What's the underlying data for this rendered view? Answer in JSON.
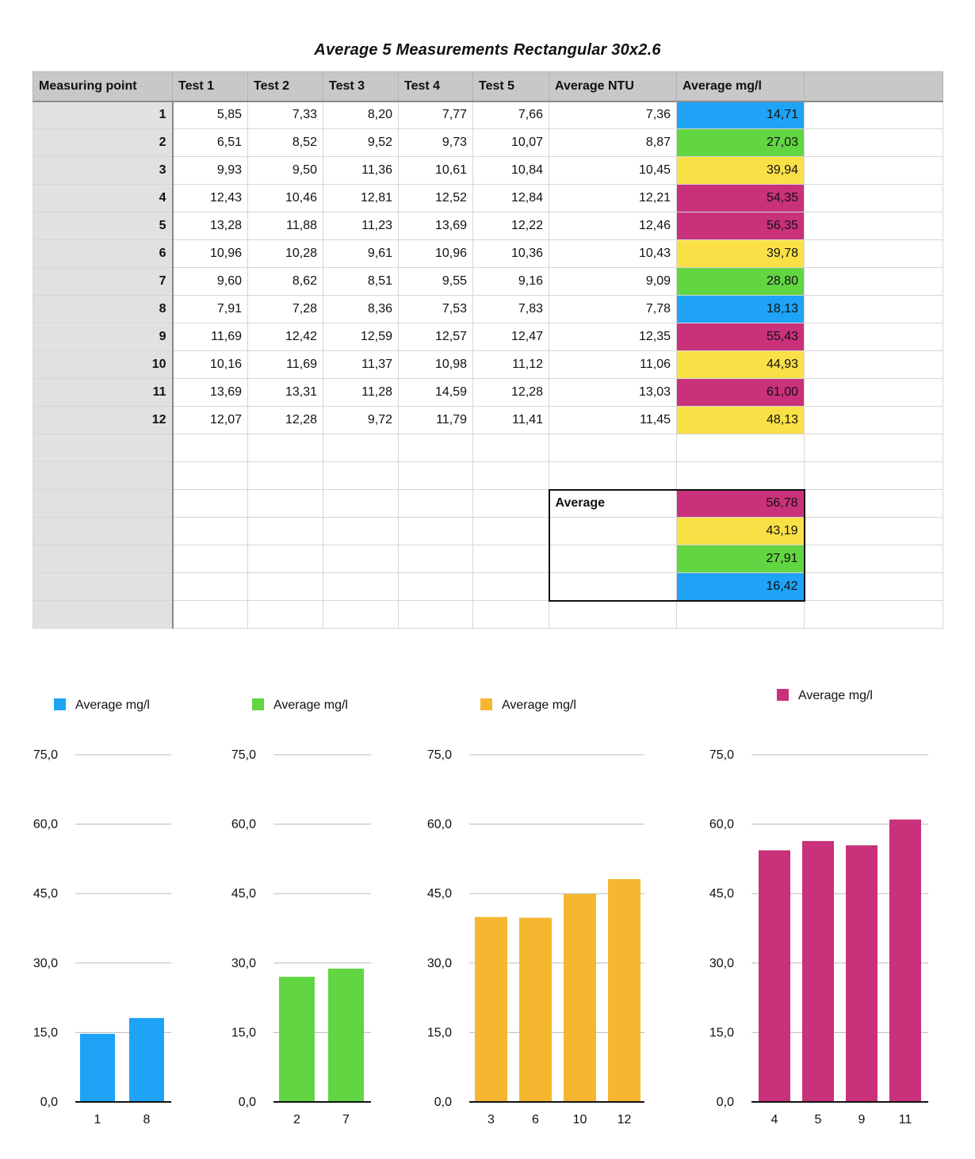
{
  "title": "Average 5 Measurements Rectangular 30x2.6",
  "colors": {
    "blue": "#1ea3f7",
    "green": "#62d543",
    "yellow": "#f9e046",
    "magenta": "#c9317a",
    "orange": "#f5b72f"
  },
  "table": {
    "headers": [
      "Measuring point",
      "Test 1",
      "Test 2",
      "Test 3",
      "Test 4",
      "Test 5",
      "Average NTU",
      "Average mg/l",
      ""
    ],
    "rows": [
      {
        "point": "1",
        "values": [
          "5,85",
          "7,33",
          "8,20",
          "7,77",
          "7,66"
        ],
        "avg_ntu": "7,36",
        "avg_mgl": "14,71",
        "color": "blue"
      },
      {
        "point": "2",
        "values": [
          "6,51",
          "8,52",
          "9,52",
          "9,73",
          "10,07"
        ],
        "avg_ntu": "8,87",
        "avg_mgl": "27,03",
        "color": "green"
      },
      {
        "point": "3",
        "values": [
          "9,93",
          "9,50",
          "11,36",
          "10,61",
          "10,84"
        ],
        "avg_ntu": "10,45",
        "avg_mgl": "39,94",
        "color": "yellow"
      },
      {
        "point": "4",
        "values": [
          "12,43",
          "10,46",
          "12,81",
          "12,52",
          "12,84"
        ],
        "avg_ntu": "12,21",
        "avg_mgl": "54,35",
        "color": "magenta"
      },
      {
        "point": "5",
        "values": [
          "13,28",
          "11,88",
          "11,23",
          "13,69",
          "12,22"
        ],
        "avg_ntu": "12,46",
        "avg_mgl": "56,35",
        "color": "magenta"
      },
      {
        "point": "6",
        "values": [
          "10,96",
          "10,28",
          "9,61",
          "10,96",
          "10,36"
        ],
        "avg_ntu": "10,43",
        "avg_mgl": "39,78",
        "color": "yellow"
      },
      {
        "point": "7",
        "values": [
          "9,60",
          "8,62",
          "8,51",
          "9,55",
          "9,16"
        ],
        "avg_ntu": "9,09",
        "avg_mgl": "28,80",
        "color": "green"
      },
      {
        "point": "8",
        "values": [
          "7,91",
          "7,28",
          "8,36",
          "7,53",
          "7,83"
        ],
        "avg_ntu": "7,78",
        "avg_mgl": "18,13",
        "color": "blue"
      },
      {
        "point": "9",
        "values": [
          "11,69",
          "12,42",
          "12,59",
          "12,57",
          "12,47"
        ],
        "avg_ntu": "12,35",
        "avg_mgl": "55,43",
        "color": "magenta"
      },
      {
        "point": "10",
        "values": [
          "10,16",
          "11,69",
          "11,37",
          "10,98",
          "11,12"
        ],
        "avg_ntu": "11,06",
        "avg_mgl": "44,93",
        "color": "yellow"
      },
      {
        "point": "11",
        "values": [
          "13,69",
          "13,31",
          "11,28",
          "14,59",
          "12,28"
        ],
        "avg_ntu": "13,03",
        "avg_mgl": "61,00",
        "color": "magenta"
      },
      {
        "point": "12",
        "values": [
          "12,07",
          "12,28",
          "9,72",
          "11,79",
          "11,41"
        ],
        "avg_ntu": "11,45",
        "avg_mgl": "48,13",
        "color": "yellow"
      }
    ],
    "average_box": {
      "label": "Average",
      "items": [
        {
          "value": "56,78",
          "color": "magenta"
        },
        {
          "value": "43,19",
          "color": "yellow"
        },
        {
          "value": "27,91",
          "color": "green"
        },
        {
          "value": "16,42",
          "color": "blue"
        }
      ]
    }
  },
  "chart_data": [
    {
      "type": "bar",
      "categories": [
        "1",
        "8"
      ],
      "series": [
        {
          "name": "Average mg/l",
          "values": [
            14.71,
            18.13
          ]
        }
      ],
      "ylim": [
        0,
        75
      ],
      "yticks": [
        "0,0",
        "15,0",
        "30,0",
        "45,0",
        "60,0",
        "75,0"
      ],
      "color": "#1ea3f7",
      "legend": "top-left",
      "grid": true
    },
    {
      "type": "bar",
      "categories": [
        "2",
        "7"
      ],
      "series": [
        {
          "name": "Average mg/l",
          "values": [
            27.03,
            28.8
          ]
        }
      ],
      "ylim": [
        0,
        75
      ],
      "yticks": [
        "0,0",
        "15,0",
        "30,0",
        "45,0",
        "60,0",
        "75,0"
      ],
      "color": "#62d543",
      "legend": "top-left",
      "grid": true
    },
    {
      "type": "bar",
      "categories": [
        "3",
        "6",
        "10",
        "12"
      ],
      "series": [
        {
          "name": "Average mg/l",
          "values": [
            39.94,
            39.78,
            44.93,
            48.13
          ]
        }
      ],
      "ylim": [
        0,
        75
      ],
      "yticks": [
        "0,0",
        "15,0",
        "30,0",
        "45,0",
        "60,0",
        "75,0"
      ],
      "color": "#f5b72f",
      "legend": "top-left",
      "grid": true
    },
    {
      "type": "bar",
      "categories": [
        "4",
        "5",
        "9",
        "11"
      ],
      "series": [
        {
          "name": "Average mg/l",
          "values": [
            54.35,
            56.35,
            55.43,
            61.0
          ]
        }
      ],
      "ylim": [
        0,
        75
      ],
      "yticks": [
        "0,0",
        "15,0",
        "30,0",
        "45,0",
        "60,0",
        "75,0"
      ],
      "color": "#c9317a",
      "legend": "top-center",
      "grid": true
    }
  ]
}
